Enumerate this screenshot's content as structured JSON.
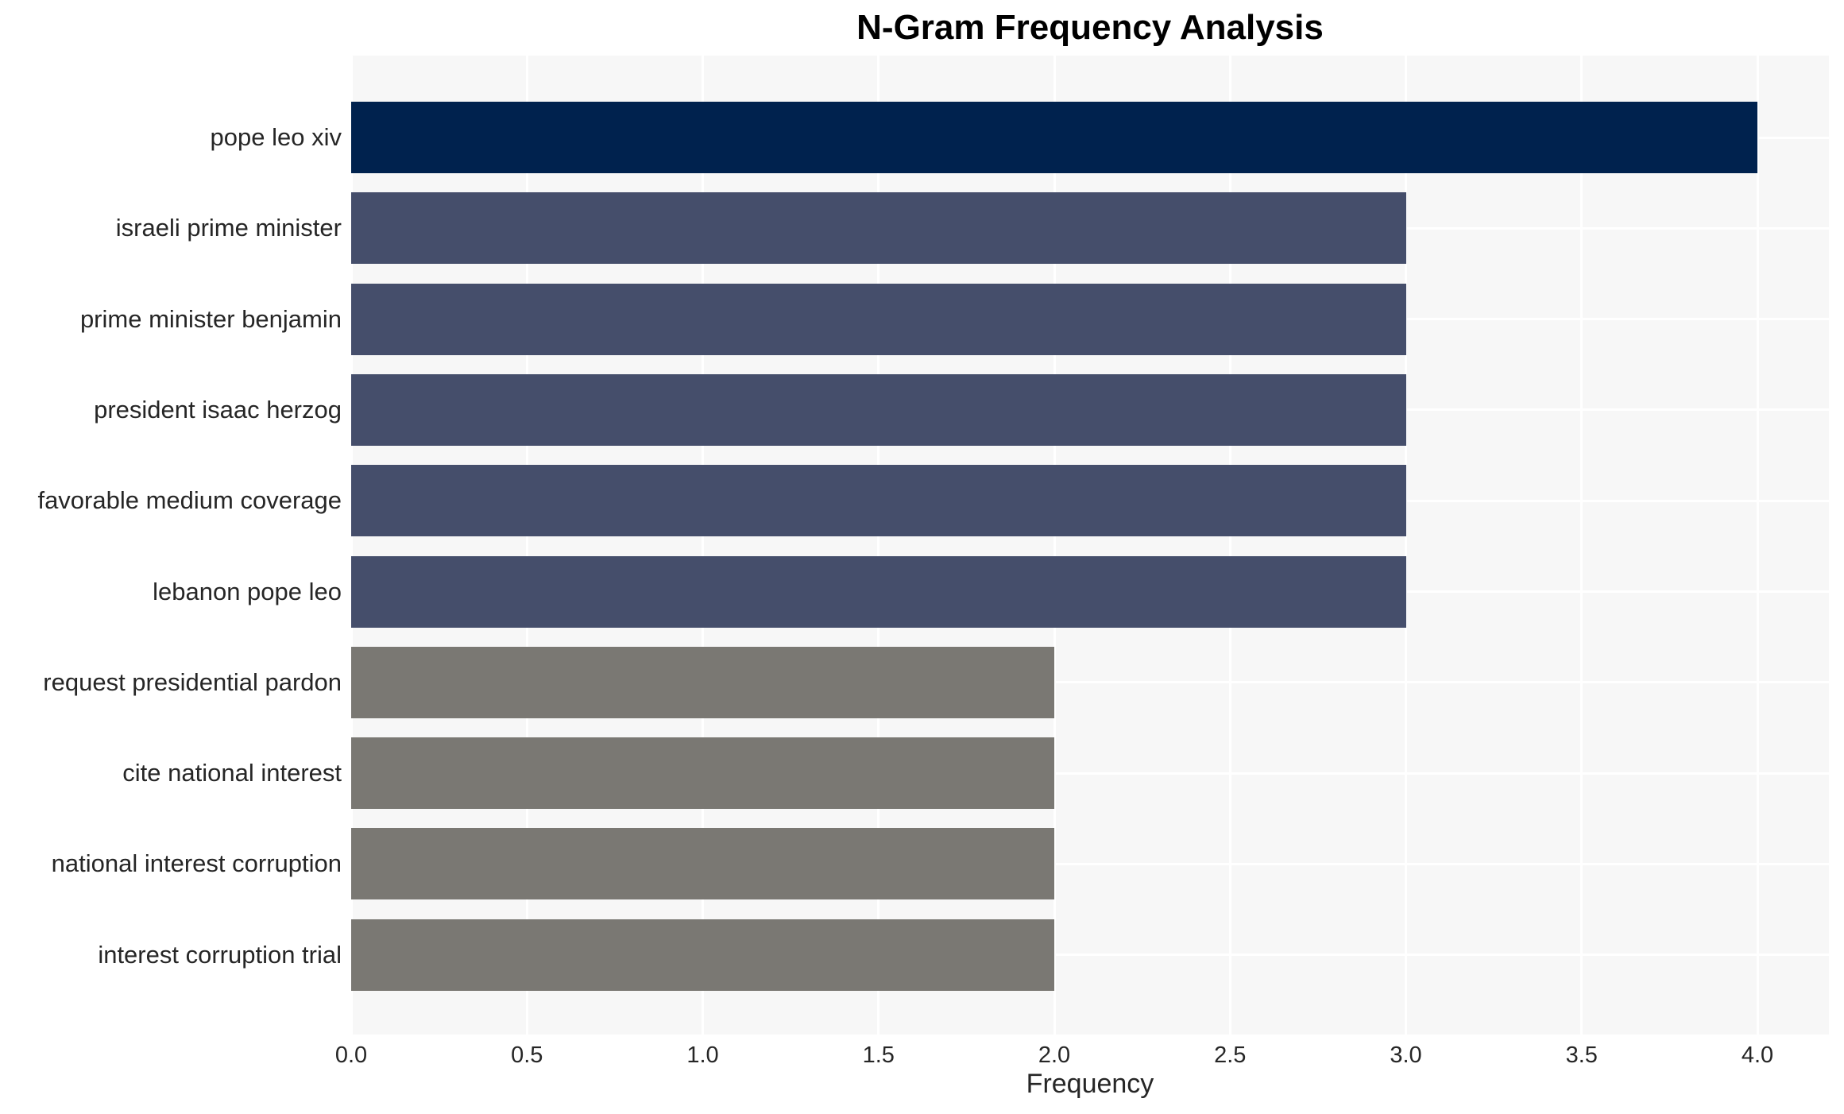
{
  "chart_data": {
    "type": "bar",
    "orientation": "horizontal",
    "title": "N-Gram Frequency Analysis",
    "xlabel": "Frequency",
    "ylabel": "",
    "categories": [
      "pope leo xiv",
      "israeli prime minister",
      "prime minister benjamin",
      "president isaac herzog",
      "favorable medium coverage",
      "lebanon pope leo",
      "request presidential pardon",
      "cite national interest",
      "national interest corruption",
      "interest corruption trial"
    ],
    "values": [
      4,
      3,
      3,
      3,
      3,
      3,
      2,
      2,
      2,
      2
    ],
    "bar_colors": [
      "#00224E",
      "#454E6B",
      "#454E6B",
      "#454E6B",
      "#454E6B",
      "#454E6B",
      "#7A7873",
      "#7A7873",
      "#7A7873",
      "#7A7873"
    ],
    "x_ticks": [
      0.0,
      0.5,
      1.0,
      1.5,
      2.0,
      2.5,
      3.0,
      3.5,
      4.0
    ],
    "x_tick_labels": [
      "0.0",
      "0.5",
      "1.0",
      "1.5",
      "2.0",
      "2.5",
      "3.0",
      "3.5",
      "4.0"
    ],
    "xlim": [
      0,
      4.2
    ],
    "grid": true,
    "legend": false,
    "colors": {
      "plot_background": "#F7F7F7",
      "grid": "#FFFFFF",
      "text": "#262626",
      "title_text": "#000000"
    }
  }
}
